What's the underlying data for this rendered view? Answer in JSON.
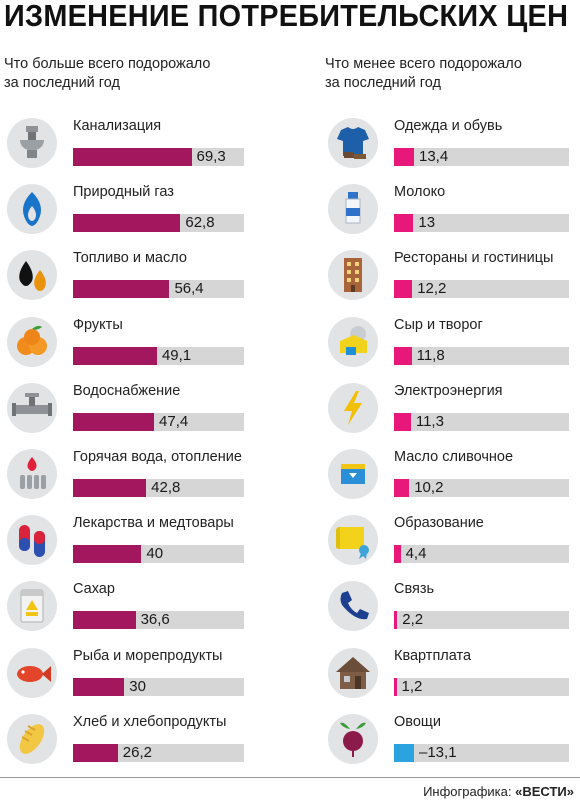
{
  "title": "ИЗМЕНЕНИЕ ПОТРЕБИТЕЛЬСКИХ ЦЕН",
  "credit": {
    "prefix": "Инфографика: ",
    "brand": "«ВЕСТИ»"
  },
  "colors": {
    "increase": "#a3175f",
    "small": "#e8177a",
    "decrease": "#2aa3e0",
    "track": "#d6d6d6",
    "icon_bg": "#e2e3e5"
  },
  "chart_data": [
    {
      "type": "bar",
      "title": "Что больше всего подорожало за последний год",
      "title_lines": [
        "Что больше всего подорожало",
        "за последний год"
      ],
      "categories": [
        "Канализация",
        "Природный газ",
        "Топливо и масло",
        "Фрукты",
        "Водоснабжение",
        "Горячая вода, отопление",
        "Лекарства и медтовары",
        "Сахар",
        "Рыба и морепродукты",
        "Хлеб и хлебопродукты"
      ],
      "values": [
        69.3,
        62.8,
        56.4,
        49.1,
        47.4,
        42.8,
        40,
        36.6,
        30,
        26.2
      ],
      "value_labels": [
        "69,3",
        "62,8",
        "56,4",
        "49,1",
        "47,4",
        "42,8",
        "40",
        "36,6",
        "30",
        "26,2"
      ],
      "icons": [
        "toilet-icon",
        "gas-flame-icon",
        "oil-drops-icon",
        "fruit-icon",
        "water-pipe-icon",
        "heating-radiator-icon",
        "pills-icon",
        "sugar-icon",
        "fish-icon",
        "bread-icon"
      ],
      "xlim": [
        0,
        80
      ]
    },
    {
      "type": "bar",
      "title": "Что менее всего подорожало за последний год",
      "title_lines": [
        "Что менее всего подорожало",
        "за последний год"
      ],
      "categories": [
        "Одежда и обувь",
        "Молоко",
        "Рестораны и гостиницы",
        "Сыр и творог",
        "Электроэнергия",
        "Масло сливочное",
        "Образование",
        "Связь",
        "Квартплата",
        "Овощи"
      ],
      "values": [
        13.4,
        13,
        12.2,
        11.8,
        11.3,
        10.2,
        4.4,
        2.2,
        1.2,
        -13.1
      ],
      "value_labels": [
        "13,4",
        "13",
        "12,2",
        "11,8",
        "11,3",
        "10,2",
        "4,4",
        "2,2",
        "1,2",
        "–13,1"
      ],
      "icons": [
        "clothes-icon",
        "milk-icon",
        "hotel-icon",
        "cheese-icon",
        "lightning-icon",
        "butter-icon",
        "diploma-icon",
        "phone-icon",
        "house-icon",
        "beet-icon"
      ],
      "xlim": [
        -15,
        100
      ]
    }
  ]
}
